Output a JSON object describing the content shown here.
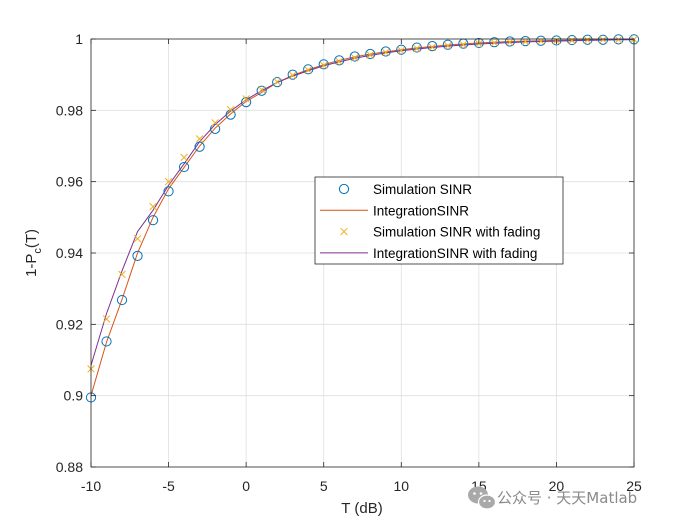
{
  "chart_data": {
    "type": "line",
    "xlabel": "T (dB)",
    "ylabel": {
      "main": "1-P",
      "sub": "c",
      "suffix": "(T)"
    },
    "xlim": [
      -10,
      25
    ],
    "ylim": [
      0.88,
      1.0
    ],
    "xticks": [
      -10,
      -5,
      0,
      5,
      10,
      15,
      20,
      25
    ],
    "yticks": [
      0.88,
      0.9,
      0.92,
      0.94,
      0.96,
      0.98,
      1
    ],
    "xtick_labels": [
      "-10",
      "-5",
      "0",
      "5",
      "10",
      "15",
      "20",
      "25"
    ],
    "ytick_labels": [
      "0.88",
      "0.9",
      "0.92",
      "0.94",
      "0.96",
      "0.98",
      "1"
    ],
    "grid": true,
    "legend_position": "center-right",
    "series": [
      {
        "name": "Simulation SINR",
        "style": "marker-circle",
        "color": "#0072BD",
        "x": [
          -10,
          -9,
          -8,
          -7,
          -6,
          -5,
          -4,
          -3,
          -2,
          -1,
          0,
          1,
          2,
          3,
          4,
          5,
          6,
          7,
          8,
          9,
          10,
          11,
          12,
          13,
          14,
          15,
          16,
          17,
          18,
          19,
          20,
          21,
          22,
          23,
          24,
          25
        ],
        "y": [
          0.8995,
          0.9152,
          0.9268,
          0.9392,
          0.9492,
          0.9573,
          0.9641,
          0.9698,
          0.9748,
          0.9788,
          0.9823,
          0.9855,
          0.9879,
          0.99,
          0.9915,
          0.9929,
          0.994,
          0.9951,
          0.9958,
          0.9965,
          0.997,
          0.9976,
          0.998,
          0.9984,
          0.9987,
          0.9989,
          0.9991,
          0.9993,
          0.9994,
          0.9995,
          0.9996,
          0.9997,
          0.9998,
          0.9998,
          0.9999,
          0.9999
        ]
      },
      {
        "name": "IntegrationSINR",
        "style": "line",
        "color": "#D95319",
        "x": [
          -10,
          -9,
          -8,
          -7,
          -6,
          -5,
          -4,
          -3,
          -2,
          -1,
          0,
          1,
          2,
          3,
          4,
          5,
          6,
          7,
          8,
          9,
          10,
          11,
          12,
          13,
          14,
          15,
          16,
          17,
          18,
          19,
          20,
          21,
          22,
          23,
          24,
          25
        ],
        "y": [
          0.9,
          0.915,
          0.927,
          0.94,
          0.95,
          0.958,
          0.964,
          0.97,
          0.975,
          0.979,
          0.9825,
          0.985,
          0.9878,
          0.9898,
          0.9914,
          0.9928,
          0.994,
          0.995,
          0.9958,
          0.9964,
          0.997,
          0.9975,
          0.9979,
          0.9983,
          0.9986,
          0.9989,
          0.9991,
          0.9993,
          0.9994,
          0.9995,
          0.9996,
          0.9997,
          0.9998,
          0.9998,
          0.9999,
          0.9999
        ]
      },
      {
        "name": "Simulation SINR with fading",
        "style": "marker-x",
        "color": "#EDB120",
        "x": [
          -10,
          -9,
          -8,
          -7,
          -6,
          -5,
          -4,
          -3,
          -2,
          -1,
          0,
          1,
          2,
          3,
          4,
          5,
          6,
          7,
          8,
          9,
          10,
          11,
          12,
          13,
          14,
          15,
          16,
          17,
          18,
          19,
          20,
          21,
          22,
          23,
          24,
          25
        ],
        "y": [
          0.9075,
          0.9215,
          0.934,
          0.944,
          0.953,
          0.96,
          0.9668,
          0.972,
          0.9765,
          0.9802,
          0.9832,
          0.9858,
          0.988,
          0.9898,
          0.9913,
          0.9926,
          0.9937,
          0.9947,
          0.9955,
          0.9962,
          0.9968,
          0.9973,
          0.9977,
          0.9981,
          0.9984,
          0.9987,
          0.9989,
          0.9991,
          0.9993,
          0.9994,
          0.9995,
          0.9996,
          0.9997,
          0.9998,
          0.9998,
          0.9999
        ]
      },
      {
        "name": "IntegrationSINR with fading",
        "style": "line",
        "color": "#7E2F8E",
        "x": [
          -10,
          -9,
          -8,
          -7,
          -6,
          -5,
          -4,
          -3,
          -2,
          -1,
          0,
          1,
          2,
          3,
          4,
          5,
          6,
          7,
          8,
          9,
          10,
          11,
          12,
          13,
          14,
          15,
          16,
          17,
          18,
          19,
          20,
          21,
          22,
          23,
          24,
          25
        ],
        "y": [
          0.9085,
          0.923,
          0.935,
          0.946,
          0.952,
          0.959,
          0.965,
          0.9712,
          0.976,
          0.9798,
          0.983,
          0.9855,
          0.9878,
          0.9896,
          0.9911,
          0.9925,
          0.9936,
          0.9946,
          0.9954,
          0.9961,
          0.9967,
          0.9972,
          0.9976,
          0.998,
          0.9983,
          0.9986,
          0.9988,
          0.999,
          0.9992,
          0.9993,
          0.9994,
          0.9995,
          0.9996,
          0.9997,
          0.9998,
          0.9998
        ]
      }
    ]
  },
  "watermark": {
    "text": "公众号 · 天天Matlab",
    "icon": "wechat-icon"
  }
}
